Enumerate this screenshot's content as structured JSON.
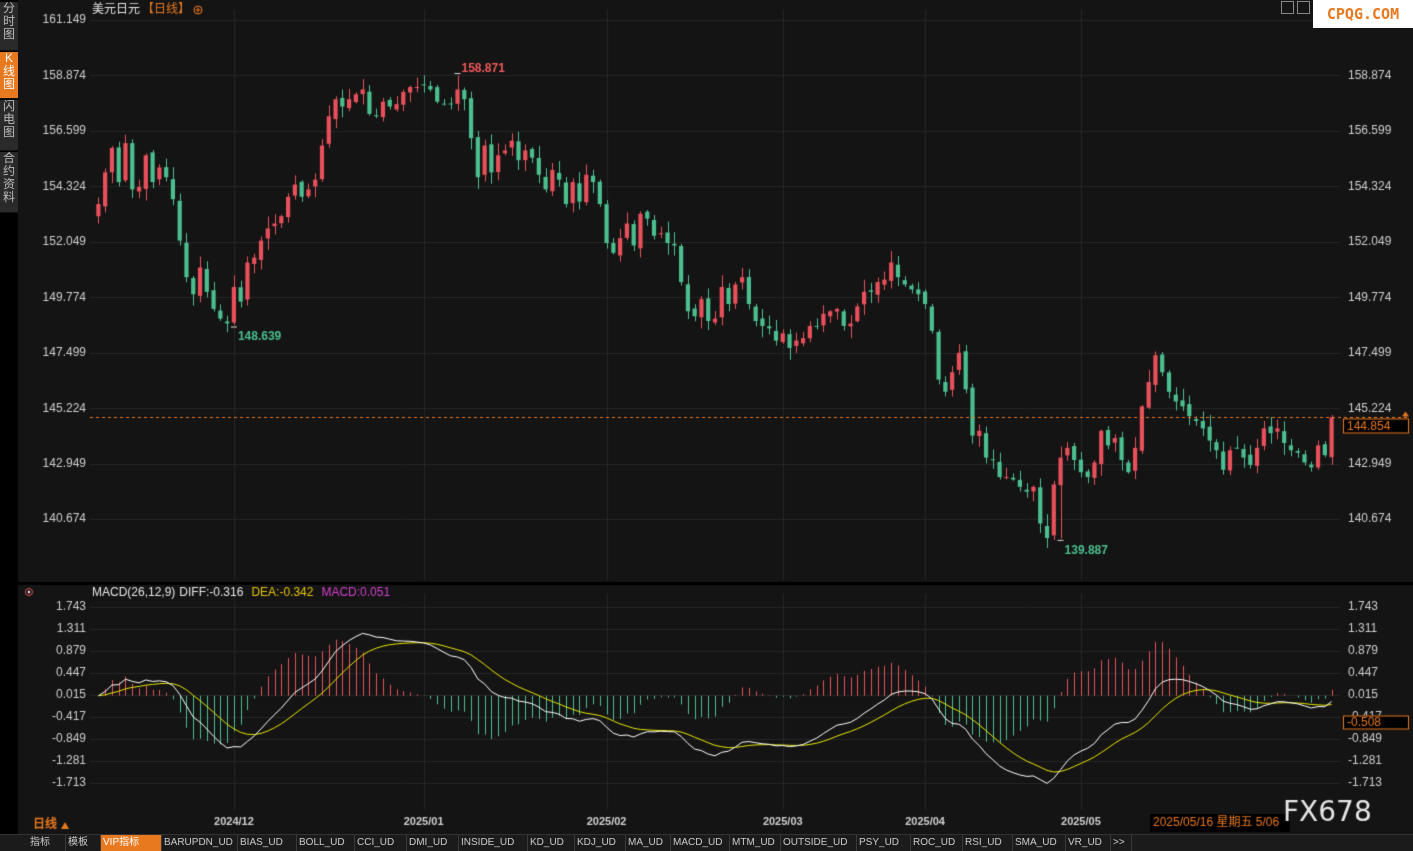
{
  "header": {
    "symbol": "美元日元",
    "period": "【日线】"
  },
  "watermark": "CPQG.COM",
  "brand": "FX678",
  "period_label": "日线",
  "status_date": "2025/05/16 星期五 5/06",
  "side_tabs": [
    "分时图",
    "K线图",
    "闪电图",
    "合约资料"
  ],
  "bottom_tabs": [
    "指标",
    "模板",
    "VIP指标",
    "BARUPDN_UD",
    "BIAS_UD",
    "BOLL_UD",
    "CCI_UD",
    "DMI_UD",
    "INSIDE_UD",
    "KD_UD",
    "KDJ_UD",
    "MA_UD",
    "MACD_UD",
    "MTM_UD",
    "OUTSIDE_UD",
    "PSY_UD",
    "ROC_UD",
    "RSI_UD",
    "SMA_UD",
    "VR_UD",
    ">>"
  ],
  "chart_data": [
    {
      "type": "candlestick",
      "title": "美元日元【日线】",
      "ylim": [
        139.0,
        161.149
      ],
      "y_ticks": [
        "161.149",
        "158.874",
        "156.599",
        "154.324",
        "152.049",
        "149.774",
        "147.499",
        "145.224",
        "142.949",
        "140.674"
      ],
      "x_ticks": [
        "2024/12",
        "2025/01",
        "2025/02",
        "2025/03",
        "2025/04",
        "2025/05"
      ],
      "last_price": "144.854",
      "annotations": [
        {
          "label": "158.871",
          "bar": 53,
          "kind": "high",
          "color": "#f05a5a"
        },
        {
          "label": "148.639",
          "bar": 20,
          "kind": "low",
          "color": "#4bbf8f"
        },
        {
          "label": "139.887",
          "bar": 142,
          "kind": "low",
          "color": "#4bbf8f"
        }
      ],
      "colors": {
        "up": "#e8505b",
        "down": "#4bbf8f"
      },
      "closes": [
        153.6,
        154.9,
        155.9,
        154.5,
        156.1,
        154.2,
        154.3,
        155.6,
        154.5,
        155.1,
        154.7,
        153.8,
        152.1,
        150.6,
        149.9,
        151.0,
        150.0,
        149.3,
        148.9,
        148.7,
        150.2,
        149.6,
        151.2,
        151.4,
        152.1,
        152.6,
        152.8,
        153.1,
        153.9,
        154.4,
        153.9,
        154.2,
        154.6,
        156.0,
        157.2,
        157.9,
        157.6,
        157.9,
        158.1,
        158.3,
        157.3,
        157.2,
        157.8,
        157.6,
        157.7,
        158.2,
        158.4,
        158.4,
        158.5,
        158.3,
        157.8,
        157.7,
        157.7,
        158.3,
        157.9,
        156.3,
        154.7,
        156.0,
        154.9,
        155.6,
        155.8,
        156.2,
        155.4,
        155.8,
        155.5,
        154.8,
        154.2,
        155.0,
        154.6,
        153.6,
        154.5,
        153.7,
        154.8,
        154.5,
        153.6,
        152.0,
        151.6,
        152.2,
        152.8,
        151.9,
        153.2,
        153.0,
        152.3,
        152.4,
        152.0,
        151.9,
        150.4,
        149.2,
        149.0,
        149.7,
        148.8,
        148.9,
        150.2,
        149.5,
        150.3,
        150.6,
        149.5,
        148.8,
        148.6,
        148.5,
        148.0,
        148.3,
        147.7,
        148.0,
        148.1,
        148.6,
        148.6,
        149.1,
        149.2,
        149.3,
        148.6,
        148.7,
        149.4,
        150.0,
        150.0,
        150.4,
        150.5,
        151.2,
        150.6,
        150.3,
        150.1,
        149.9,
        149.5,
        148.4,
        146.4,
        145.9,
        146.7,
        147.5,
        146.0,
        144.1,
        144.3,
        143.2,
        143.1,
        142.4,
        142.4,
        142.3,
        142.0,
        141.8,
        142.0,
        140.5,
        139.9,
        142.1,
        143.2,
        143.6,
        143.1,
        142.6,
        142.4,
        143.0,
        144.3,
        143.7,
        144.0,
        143.1,
        142.6,
        143.6,
        145.3,
        146.3,
        147.4,
        146.7,
        145.9,
        145.5,
        145.3,
        144.9,
        144.7,
        144.4,
        143.9,
        143.5,
        142.7,
        143.5,
        143.6,
        143.2,
        142.9,
        143.6,
        144.4,
        144.2,
        144.4,
        143.8,
        143.5,
        143.4,
        143.0,
        142.8,
        143.7,
        143.3,
        144.854
      ]
    },
    {
      "type": "macd",
      "title": "MACD(26,12,9)",
      "diff_label": "DIFF:-0.316",
      "dea_label": "DEA:-0.342",
      "macd_label": "MACD:0.051",
      "ylim": [
        -1.85,
        1.8
      ],
      "y_ticks": [
        "1.743",
        "1.311",
        "0.879",
        "0.447",
        "0.015",
        "-0.417",
        "-0.849",
        "-1.281",
        "-1.713"
      ],
      "last_value": "-0.508",
      "colors": {
        "diff": "#ffffff",
        "dea": "#e6e600",
        "label_dea": "#e6c200",
        "label_macd": "#d040d0",
        "hist_up": "#e8505b",
        "hist_down": "#4bbf8f"
      }
    }
  ]
}
